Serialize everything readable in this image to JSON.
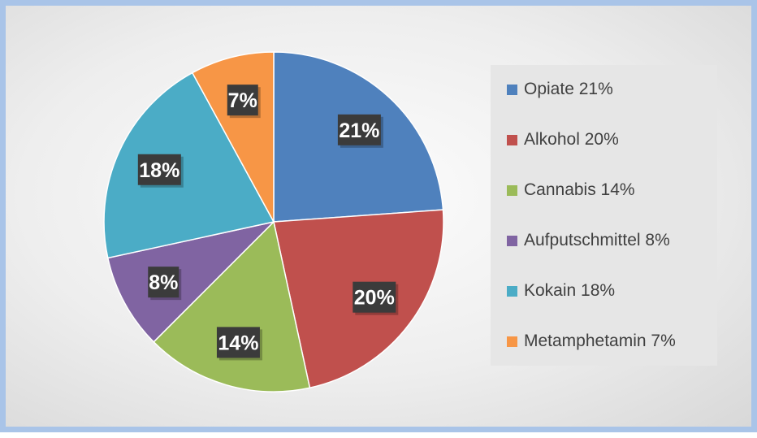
{
  "chart_data": {
    "type": "pie",
    "categories": [
      "Opiate",
      "Alkohol",
      "Cannabis",
      "Aufputschmittel",
      "Kokain",
      "Metamphetamin"
    ],
    "values": [
      21,
      20,
      14,
      8,
      18,
      7
    ],
    "data_labels": [
      "21%",
      "20%",
      "14%",
      "8%",
      "18%",
      "7%"
    ],
    "colors": [
      "#4f81bd",
      "#c0504d",
      "#9bbb59",
      "#8064a2",
      "#4bacc6",
      "#f79646"
    ],
    "legend_position": "right",
    "legend": [
      {
        "label": "Opiate  21%",
        "color": "#4f81bd"
      },
      {
        "label": "Alkohol  20%",
        "color": "#c0504d"
      },
      {
        "label": "Cannabis  14%",
        "color": "#9bbb59"
      },
      {
        "label": "Aufputschmittel  8%",
        "color": "#8064a2"
      },
      {
        "label": "Kokain  18%",
        "color": "#4bacc6"
      },
      {
        "label": "Metamphetamin 7%",
        "color": "#f79646"
      }
    ]
  }
}
